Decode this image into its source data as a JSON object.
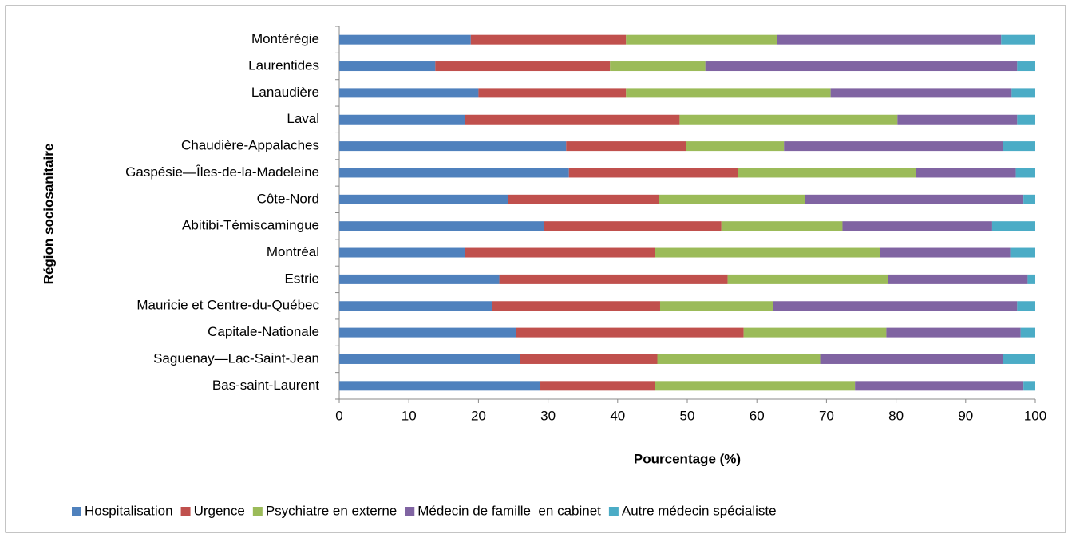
{
  "chart_data": {
    "type": "bar",
    "orientation": "horizontal",
    "stacked": true,
    "x_label": "Pourcentage (%)",
    "y_label": "Région sociosanitaire",
    "categories": [
      "Montérégie",
      "Laurentides",
      "Lanaudière",
      "Laval",
      "Chaudière-Appalaches",
      "Gaspésie—Îles-de-la-Madeleine",
      "Côte-Nord",
      "Abitibi-Témiscamingue",
      "Montréal",
      "Estrie",
      "Mauricie et Centre-du-Québec",
      "Capitale-Nationale",
      "Saguenay—Lac-Saint-Jean",
      "Bas-saint-Laurent"
    ],
    "series": [
      {
        "name": "Hospitalisation",
        "color": "#4f81bd",
        "values": [
          18.9,
          13.8,
          20.0,
          18.1,
          32.6,
          33.0,
          24.3,
          29.4,
          18.1,
          23.0,
          22.0,
          25.4,
          26.0,
          28.9
        ]
      },
      {
        "name": "Urgence",
        "color": "#c0504d",
        "values": [
          22.3,
          25.1,
          21.2,
          30.8,
          17.2,
          24.3,
          21.6,
          25.5,
          27.3,
          32.8,
          24.1,
          32.7,
          19.7,
          16.5
        ]
      },
      {
        "name": "Psychiatre en externe",
        "color": "#9bbb59",
        "values": [
          21.7,
          13.7,
          29.4,
          31.3,
          14.1,
          25.5,
          21.0,
          17.4,
          32.3,
          23.1,
          16.2,
          20.5,
          23.4,
          28.7
        ]
      },
      {
        "name": "Médecin de famille  en cabinet",
        "color": "#8064a2",
        "values": [
          32.2,
          44.8,
          26.0,
          17.2,
          31.4,
          14.4,
          31.4,
          21.5,
          18.7,
          20.0,
          35.1,
          19.3,
          26.2,
          24.2
        ]
      },
      {
        "name": "Autre médecin spécialiste",
        "color": "#4bacc6",
        "values": [
          4.9,
          2.6,
          3.4,
          2.6,
          4.7,
          2.8,
          1.7,
          6.2,
          3.6,
          1.1,
          2.6,
          2.1,
          4.7,
          1.7
        ]
      }
    ],
    "xlim": [
      0,
      100
    ],
    "xticks": [
      0,
      10,
      20,
      30,
      40,
      50,
      60,
      70,
      80,
      90,
      100
    ]
  }
}
